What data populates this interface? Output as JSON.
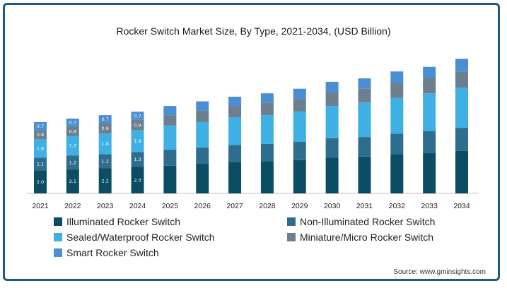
{
  "chart_data": {
    "type": "bar",
    "stacked": true,
    "title": "Rocker Switch Market Size, By Type, 2021-2034, (USD Billion)",
    "xlabel": "",
    "ylabel": "",
    "categories": [
      "2021",
      "2022",
      "2023",
      "2024",
      "2025",
      "2026",
      "2027",
      "2028",
      "2029",
      "2030",
      "2031",
      "2032",
      "2033",
      "2034"
    ],
    "series": [
      {
        "name": "Illuminated Rocker Switch",
        "color": "#0b4d62",
        "values": [
          2.0,
          2.1,
          2.2,
          2.3,
          2.4,
          2.6,
          2.7,
          2.8,
          2.9,
          3.1,
          3.2,
          3.4,
          3.5,
          3.7
        ],
        "labels": [
          "2.0",
          "2.1",
          "2.2",
          "2.3"
        ]
      },
      {
        "name": "Non-Illuminated Rocker Switch",
        "color": "#2e6d8e",
        "values": [
          1.1,
          1.2,
          1.2,
          1.3,
          1.4,
          1.4,
          1.5,
          1.5,
          1.6,
          1.7,
          1.7,
          1.8,
          1.9,
          2.0
        ],
        "labels": [
          "1.1",
          "1.2",
          "1.2",
          "1.3"
        ]
      },
      {
        "name": "Sealed/Waterproof Rocker Switch",
        "color": "#3fb0e3",
        "values": [
          1.6,
          1.7,
          1.8,
          1.9,
          2.1,
          2.2,
          2.4,
          2.5,
          2.6,
          2.8,
          3.0,
          3.1,
          3.3,
          3.5
        ],
        "labels": [
          "1.6",
          "1.7",
          "1.8",
          "1.9"
        ]
      },
      {
        "name": "Miniature/Micro Rocker Switch",
        "color": "#6b7f8e",
        "values": [
          0.8,
          0.8,
          0.9,
          0.9,
          0.9,
          1.0,
          1.0,
          1.1,
          1.1,
          1.2,
          1.2,
          1.3,
          1.3,
          1.4
        ],
        "labels": [
          "0.8",
          "0.8",
          "0.9",
          "0.9"
        ]
      },
      {
        "name": "Smart Rocker Switch",
        "color": "#4a8fd4",
        "values": [
          0.7,
          0.7,
          0.7,
          0.7,
          0.8,
          0.8,
          0.8,
          0.8,
          0.9,
          0.9,
          0.9,
          1.0,
          1.0,
          1.1
        ],
        "labels": [
          "0.7",
          "0.7",
          "0.7",
          "0.7"
        ]
      }
    ],
    "legend_position": "bottom",
    "grid": false
  },
  "source_text": "Source: www.gminsights.com"
}
